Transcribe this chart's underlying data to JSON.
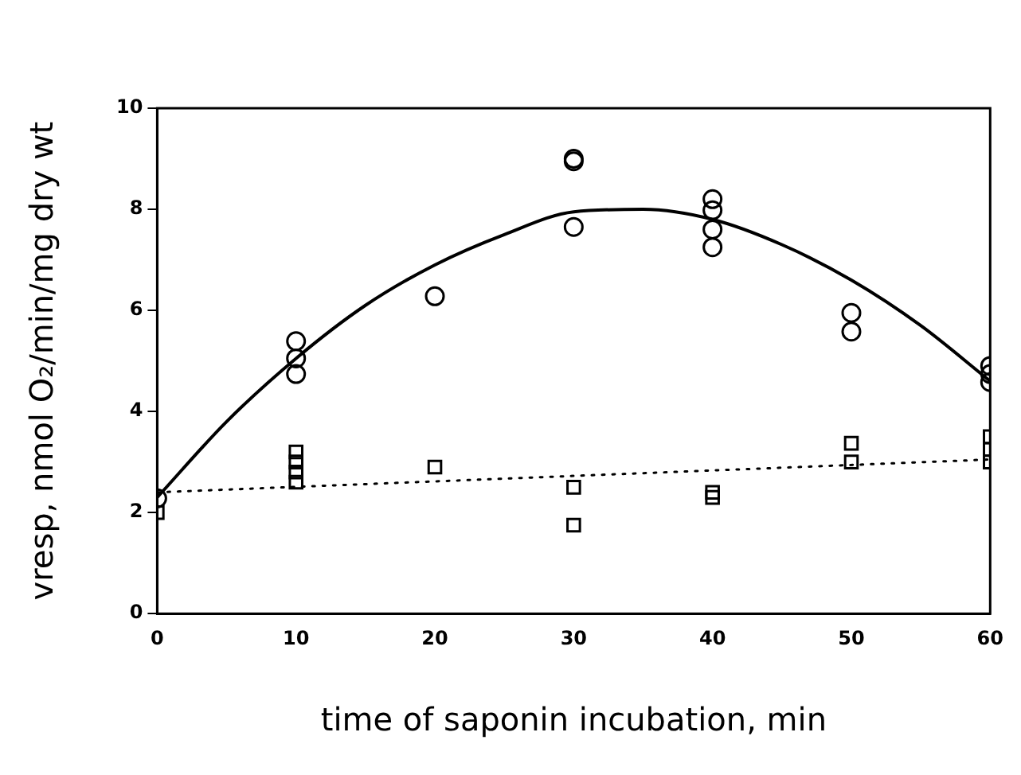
{
  "chart_data": {
    "type": "scatter",
    "xlabel": "time of saponin incubation, min",
    "ylabel": "vresp, nmol O₂/min/mg dry wt",
    "xlim": [
      0,
      60
    ],
    "xticks": [
      0,
      10,
      20,
      30,
      40,
      50,
      60
    ],
    "ylim": [
      0,
      10
    ],
    "yticks": [
      0,
      2,
      4,
      6,
      8,
      10
    ],
    "grid": false,
    "legend": false,
    "series": [
      {
        "marker": "circle",
        "color": "#000000",
        "x": [
          0,
          10,
          10,
          10,
          20,
          30,
          30,
          30,
          40,
          40,
          40,
          40,
          50,
          50,
          60,
          60,
          60
        ],
        "values": [
          2.28,
          5.39,
          5.05,
          4.74,
          6.28,
          9.0,
          8.95,
          7.65,
          8.2,
          7.98,
          7.6,
          7.25,
          5.95,
          5.58,
          4.9,
          4.74,
          4.58
        ]
      },
      {
        "marker": "square",
        "color": "#000000",
        "x": [
          0,
          10,
          10,
          10,
          10,
          20,
          30,
          30,
          40,
          40,
          50,
          50,
          60,
          60,
          60
        ],
        "values": [
          2.0,
          3.2,
          3.0,
          2.8,
          2.6,
          2.9,
          2.5,
          1.75,
          2.4,
          2.3,
          3.37,
          3.0,
          3.5,
          3.25,
          3.0
        ]
      },
      {
        "type": "line",
        "marker": "none",
        "line_style": "solid",
        "color": "#000000",
        "x": [
          0,
          5,
          10,
          15,
          20,
          25,
          30,
          35,
          40,
          45,
          50,
          55,
          60
        ],
        "values": [
          2.3,
          3.8,
          5.05,
          6.1,
          6.9,
          7.5,
          7.95,
          8.0,
          7.8,
          7.3,
          6.6,
          5.7,
          4.6
        ]
      },
      {
        "type": "line",
        "marker": "none",
        "line_style": "dotted",
        "color": "#000000",
        "x": [
          0,
          60
        ],
        "values": [
          2.4,
          3.05
        ]
      }
    ]
  }
}
